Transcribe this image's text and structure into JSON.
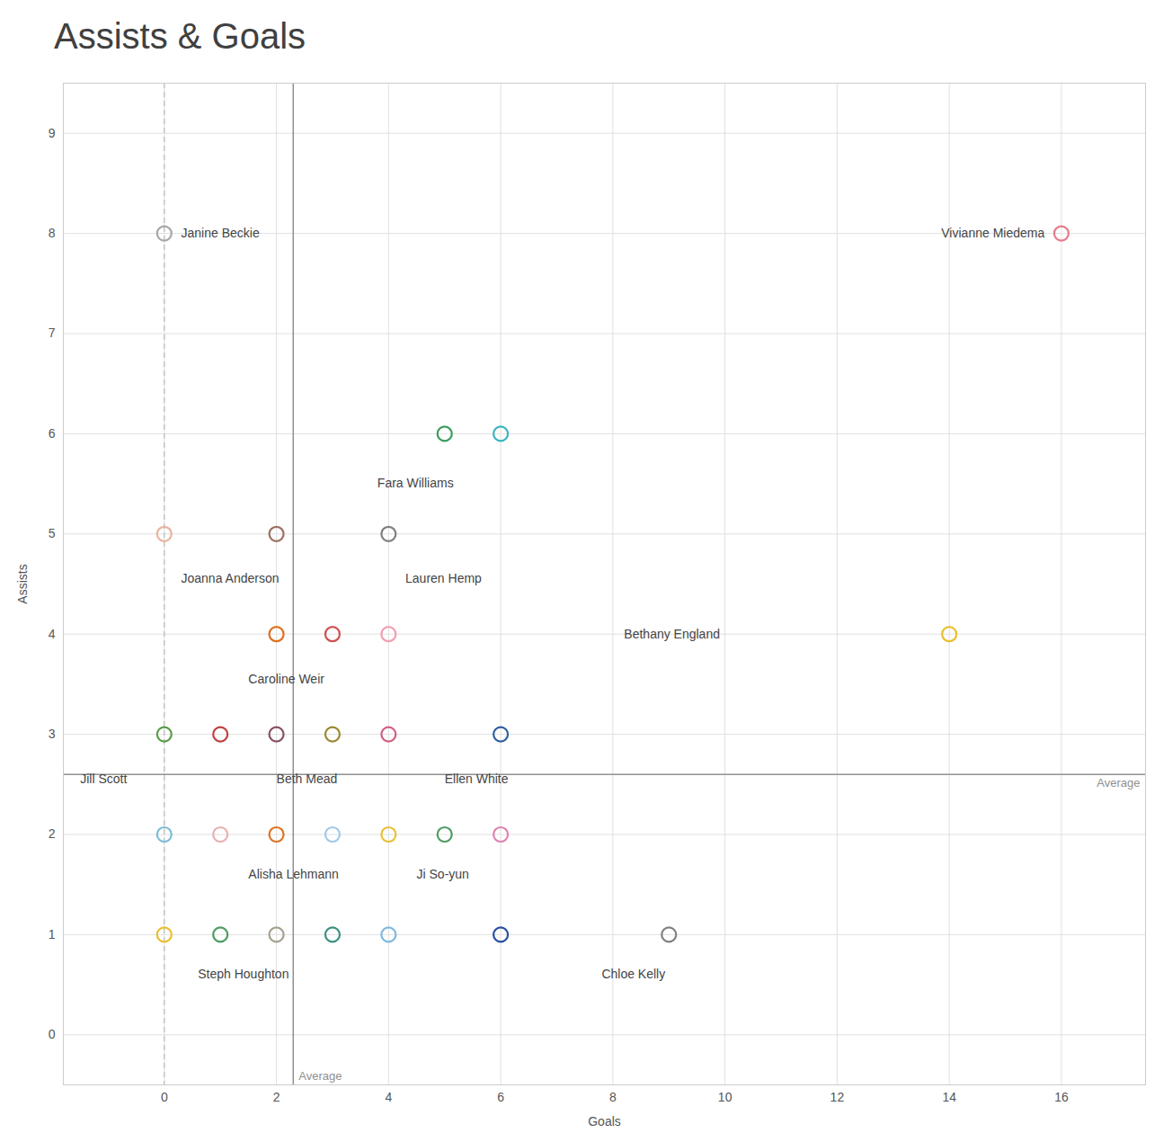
{
  "chart_data": {
    "type": "scatter",
    "title": "Assists & Goals",
    "x_label": "Goals",
    "y_label": "Assists",
    "xlim": [
      -1.8,
      17.5
    ],
    "ylim": [
      -0.5,
      9.5
    ],
    "xticks": [
      0,
      2,
      4,
      6,
      8,
      10,
      12,
      14,
      16
    ],
    "yticks": [
      0,
      1,
      2,
      3,
      4,
      5,
      6,
      7,
      8,
      9
    ],
    "grid": true,
    "marker": "circle",
    "x": [
      0,
      16,
      5,
      6,
      0,
      2,
      4,
      2,
      3,
      4,
      14,
      0,
      1,
      2,
      3,
      4,
      6,
      0,
      1,
      2,
      3,
      4,
      5,
      6,
      0,
      1,
      2,
      3,
      4,
      6,
      9
    ],
    "values": [
      8,
      8,
      6,
      6,
      5,
      5,
      5,
      4,
      4,
      4,
      4,
      3,
      3,
      3,
      3,
      3,
      3,
      2,
      2,
      2,
      2,
      2,
      2,
      2,
      1,
      1,
      1,
      1,
      1,
      1,
      1
    ],
    "colors": [
      "#a8a8a8",
      "#e87b8a",
      "#3a9c5c",
      "#3ab5c0",
      "#e8b4a0",
      "#9c7060",
      "#808080",
      "#e07020",
      "#d05050",
      "#f0a0b0",
      "#e8c030",
      "#5a9c4a",
      "#c04040",
      "#885060",
      "#9c8830",
      "#d06080",
      "#3060a0",
      "#7abcd8",
      "#e8b0b0",
      "#e07020",
      "#a0c8e8",
      "#e8c030",
      "#4a9c60",
      "#e080b0",
      "#e8c030",
      "#4a9c60",
      "#a8a090",
      "#3a9080",
      "#80b8e0",
      "#2850a0",
      "#808080"
    ],
    "annotations": [
      {
        "text": "Janine Beckie",
        "x": 0.3,
        "y": 8.0
      },
      {
        "text": "Vivianne Miedema",
        "x": 15.7,
        "y": 8.0
      },
      {
        "text": "Fara Williams",
        "x": 3.8,
        "y": 5.55
      },
      {
        "text": "Joanna Anderson",
        "x": 0.3,
        "y": 4.6
      },
      {
        "text": "Lauren Hemp",
        "x": 4.3,
        "y": 4.6
      },
      {
        "text": "Caroline Weir",
        "x": 1.5,
        "y": 3.6
      },
      {
        "text": "Bethany England",
        "x": 8.2,
        "y": 4.0
      },
      {
        "text": "Jill Scott",
        "x": -1.5,
        "y": 2.6
      },
      {
        "text": "Beth Mead",
        "x": 2.0,
        "y": 2.6
      },
      {
        "text": "Ellen White",
        "x": 5.0,
        "y": 2.6
      },
      {
        "text": "Alisha Lehmann",
        "x": 1.5,
        "y": 1.65
      },
      {
        "text": "Ji So-yun",
        "x": 4.5,
        "y": 1.65
      },
      {
        "text": "Steph Houghton",
        "x": 0.6,
        "y": 0.65
      },
      {
        "text": "Chloe Kelly",
        "x": 7.8,
        "y": 0.65
      }
    ],
    "reference_lines": [
      {
        "axis": "x",
        "value": 0,
        "color": "#bbbbbb",
        "line_style": "dashed"
      },
      {
        "axis": "x",
        "value": 2.3,
        "color": "#909090",
        "line_style": "solid",
        "label": "Average"
      },
      {
        "axis": "y",
        "value": 2.6,
        "color": "#909090",
        "line_style": "solid",
        "label": "Average"
      }
    ]
  }
}
